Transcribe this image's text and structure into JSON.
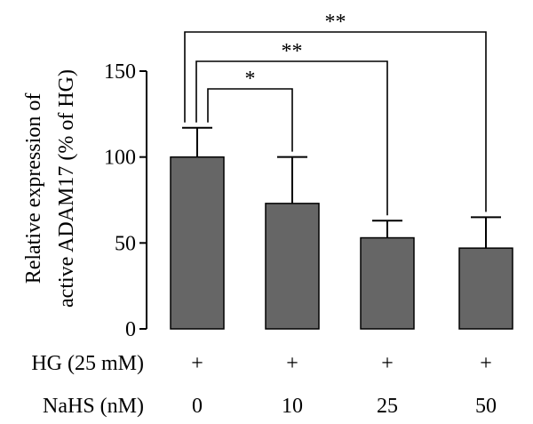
{
  "chart_data": {
    "type": "bar",
    "ylabel_lines": [
      "Relative expression of",
      "active ADAM17 (% of HG)"
    ],
    "ylim": [
      0,
      150
    ],
    "yticks": [
      0,
      50,
      100,
      150
    ],
    "values": [
      100,
      73,
      53,
      47
    ],
    "errors": [
      17,
      27,
      10,
      18
    ],
    "bar_color": "#666666",
    "rows": [
      {
        "label": "HG (25 mM)",
        "values": [
          "+",
          "+",
          "+",
          "+"
        ]
      },
      {
        "label": "NaHS (nM)",
        "values": [
          "0",
          "10",
          "25",
          "50"
        ]
      }
    ],
    "significance": [
      {
        "from": 0,
        "to": 1,
        "label": "*"
      },
      {
        "from": 0,
        "to": 2,
        "label": "**"
      },
      {
        "from": 0,
        "to": 3,
        "label": "**"
      }
    ]
  }
}
